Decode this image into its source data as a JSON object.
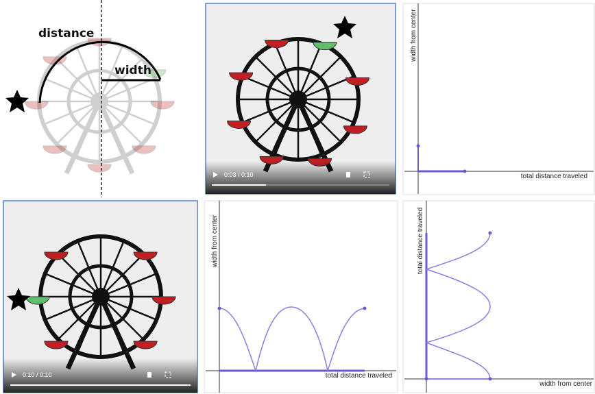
{
  "panels": {
    "diagram": {
      "distance_label": "distance",
      "width_label": "width"
    },
    "video_1": {
      "time": "0:03 / 0:10"
    },
    "graph_1": {
      "y_label": "width from center",
      "x_label": "total distance traveled"
    },
    "video_2": {
      "time": "0:10 / 0:10"
    },
    "graph_2": {
      "y_label": "width from center",
      "x_label": "total distance traveled"
    },
    "graph_3": {
      "y_label": "total distance traveled",
      "x_label": "width from center"
    }
  }
}
